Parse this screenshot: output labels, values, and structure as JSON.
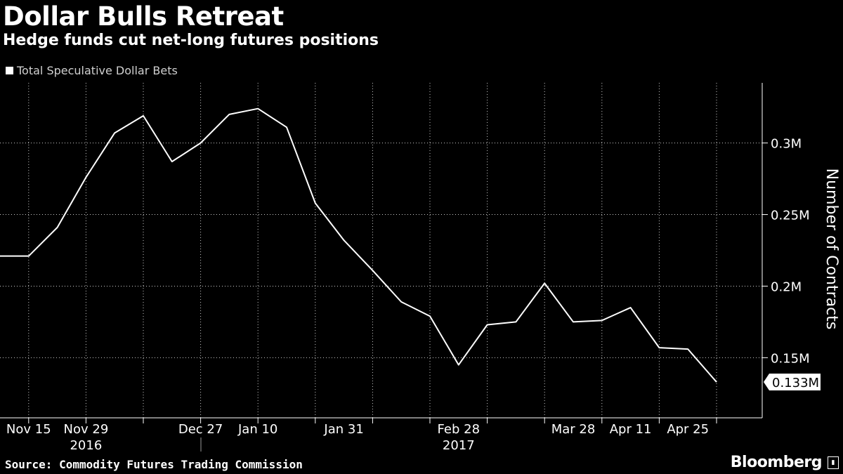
{
  "header": {
    "title": "Dollar Bulls Retreat",
    "subtitle": "Hedge funds cut net-long futures positions"
  },
  "legend": {
    "label": "Total Speculative Dollar Bets"
  },
  "footer": {
    "source": "Source: Commodity Futures Trading Commission",
    "brand": "Bloomberg"
  },
  "chart_data": {
    "type": "line",
    "title": "Dollar Bulls Retreat",
    "subtitle": "Hedge funds cut net-long futures positions",
    "ylabel": "Number of Contracts",
    "ylim": [
      0.108,
      0.342
    ],
    "y_unit": "M",
    "grid": true,
    "legend_position": "top-left",
    "colors": {
      "background": "#000000",
      "line": "#ffffff",
      "grid": "#ffffff",
      "callout_bg": "#ffffff",
      "callout_text": "#000000"
    },
    "x_ticks": [
      "Nov 15",
      "Nov 29",
      "Dec 27",
      "Jan 10",
      "Jan 31",
      "Feb 28",
      "Mar 28",
      "Apr 11",
      "Apr 25"
    ],
    "x_tick_weeks": [
      1,
      3,
      7,
      9,
      12,
      16,
      20,
      22,
      24
    ],
    "years": [
      {
        "label": "2016",
        "week": 3
      },
      {
        "label": "2017",
        "week": 16
      }
    ],
    "y_ticks": [
      {
        "value": 0.15,
        "label": "0.15M"
      },
      {
        "value": 0.2,
        "label": "0.2M"
      },
      {
        "value": 0.25,
        "label": "0.25M"
      },
      {
        "value": 0.3,
        "label": "0.3M"
      }
    ],
    "last_value_label": "0.133M",
    "series": [
      {
        "name": "Total Speculative Dollar Bets",
        "dates": [
          "Nov 8",
          "Nov 15",
          "Nov 22",
          "Nov 29",
          "Dec 6",
          "Dec 13",
          "Dec 20",
          "Dec 27",
          "Jan 3",
          "Jan 10",
          "Jan 17",
          "Jan 24",
          "Jan 31",
          "Feb 7",
          "Feb 14",
          "Feb 21",
          "Feb 28",
          "Mar 7",
          "Mar 14",
          "Mar 21",
          "Mar 28",
          "Apr 4",
          "Apr 11",
          "Apr 18",
          "Apr 25",
          "May 2"
        ],
        "values": [
          0.221,
          0.221,
          0.241,
          0.276,
          0.307,
          0.319,
          0.287,
          0.3,
          0.32,
          0.324,
          0.311,
          0.258,
          0.232,
          0.211,
          0.189,
          0.179,
          0.145,
          0.173,
          0.175,
          0.202,
          0.175,
          0.176,
          0.185,
          0.157,
          0.156,
          0.133
        ]
      }
    ]
  }
}
